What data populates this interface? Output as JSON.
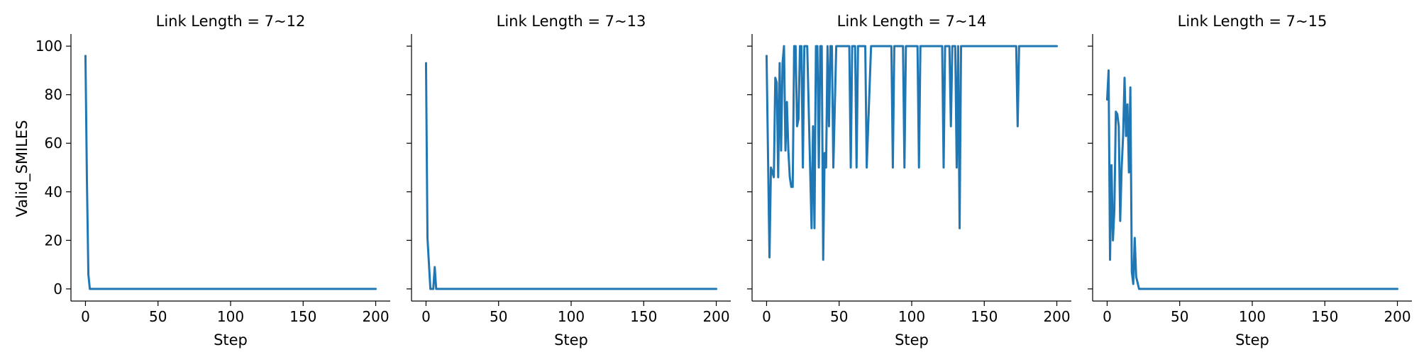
{
  "chart_data": {
    "type": "line",
    "series_color": "#1f77b4",
    "shared_ylabel": "Valid_SMILES",
    "ylim": [
      -5,
      105
    ],
    "xlim": [
      -10,
      210
    ],
    "grid": false,
    "legend": "none",
    "panels": [
      {
        "title": "Link Length = 7~12",
        "xlabel": "Step",
        "x_ticks": [
          "0",
          "50",
          "100",
          "150",
          "200"
        ],
        "y_ticks": [
          "0",
          "20",
          "40",
          "60",
          "80",
          "100"
        ],
        "points": [
          [
            0,
            96
          ],
          [
            1,
            45
          ],
          [
            2,
            6
          ],
          [
            3,
            0
          ],
          [
            5,
            0
          ],
          [
            200,
            0
          ]
        ]
      },
      {
        "title": "Link Length = 7~13",
        "xlabel": "Step",
        "x_ticks": [
          "0",
          "50",
          "100",
          "150",
          "200"
        ],
        "points": [
          [
            0,
            93
          ],
          [
            1,
            21
          ],
          [
            3,
            0
          ],
          [
            5,
            0
          ],
          [
            6,
            9
          ],
          [
            7,
            0
          ],
          [
            9,
            0
          ],
          [
            200,
            0
          ]
        ]
      },
      {
        "title": "Link Length = 7~14",
        "xlabel": "Step",
        "x_ticks": [
          "0",
          "50",
          "100",
          "150",
          "200"
        ],
        "points": [
          [
            0,
            96
          ],
          [
            2,
            13
          ],
          [
            3,
            50
          ],
          [
            5,
            46
          ],
          [
            6,
            87
          ],
          [
            7,
            85
          ],
          [
            8,
            46
          ],
          [
            9,
            93
          ],
          [
            10,
            57
          ],
          [
            11,
            93
          ],
          [
            12,
            100
          ],
          [
            13,
            57
          ],
          [
            14,
            77
          ],
          [
            15,
            57
          ],
          [
            16,
            46
          ],
          [
            17,
            42
          ],
          [
            18,
            42
          ],
          [
            19,
            100
          ],
          [
            20,
            100
          ],
          [
            21,
            67
          ],
          [
            22,
            70
          ],
          [
            23,
            100
          ],
          [
            24,
            100
          ],
          [
            25,
            50
          ],
          [
            26,
            100
          ],
          [
            27,
            100
          ],
          [
            28,
            100
          ],
          [
            30,
            50
          ],
          [
            31,
            25
          ],
          [
            32,
            67
          ],
          [
            33,
            25
          ],
          [
            34,
            100
          ],
          [
            35,
            100
          ],
          [
            36,
            50
          ],
          [
            37,
            100
          ],
          [
            38,
            100
          ],
          [
            39,
            12
          ],
          [
            40,
            56
          ],
          [
            41,
            50
          ],
          [
            42,
            100
          ],
          [
            43,
            67
          ],
          [
            44,
            100
          ],
          [
            45,
            100
          ],
          [
            46,
            50
          ],
          [
            48,
            100
          ],
          [
            57,
            100
          ],
          [
            58,
            50
          ],
          [
            59,
            100
          ],
          [
            61,
            100
          ],
          [
            62,
            50
          ],
          [
            63,
            100
          ],
          [
            68,
            100
          ],
          [
            69,
            50
          ],
          [
            70,
            67
          ],
          [
            72,
            100
          ],
          [
            86,
            100
          ],
          [
            87,
            50
          ],
          [
            88,
            100
          ],
          [
            94,
            100
          ],
          [
            95,
            50
          ],
          [
            96,
            100
          ],
          [
            104,
            100
          ],
          [
            105,
            50
          ],
          [
            106,
            100
          ],
          [
            121,
            100
          ],
          [
            122,
            50
          ],
          [
            123,
            100
          ],
          [
            126,
            100
          ],
          [
            127,
            67
          ],
          [
            128,
            100
          ],
          [
            130,
            100
          ],
          [
            131,
            50
          ],
          [
            132,
            100
          ],
          [
            133,
            25
          ],
          [
            134,
            100
          ],
          [
            172,
            100
          ],
          [
            173,
            67
          ],
          [
            174,
            100
          ],
          [
            200,
            100
          ]
        ]
      },
      {
        "title": "Link Length = 7~15",
        "xlabel": "Step",
        "x_ticks": [
          "0",
          "50",
          "100",
          "150",
          "200"
        ],
        "points": [
          [
            0,
            78
          ],
          [
            1,
            90
          ],
          [
            2,
            12
          ],
          [
            3,
            51
          ],
          [
            4,
            20
          ],
          [
            5,
            33
          ],
          [
            6,
            73
          ],
          [
            7,
            72
          ],
          [
            8,
            67
          ],
          [
            9,
            28
          ],
          [
            10,
            50
          ],
          [
            11,
            63
          ],
          [
            12,
            87
          ],
          [
            13,
            63
          ],
          [
            14,
            76
          ],
          [
            15,
            48
          ],
          [
            16,
            83
          ],
          [
            17,
            7
          ],
          [
            18,
            2
          ],
          [
            19,
            21
          ],
          [
            20,
            5
          ],
          [
            22,
            0
          ],
          [
            25,
            0
          ],
          [
            200,
            0
          ]
        ]
      }
    ]
  }
}
